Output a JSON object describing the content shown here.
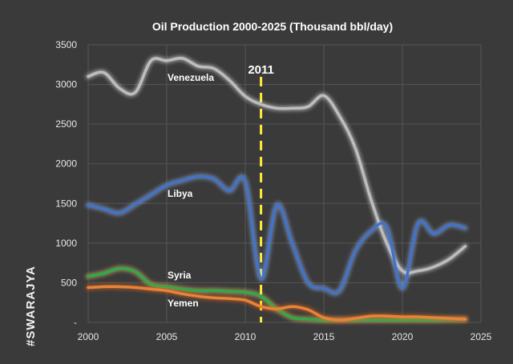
{
  "brand": {
    "text": "#SWARAJYA"
  },
  "chart_data": {
    "type": "line",
    "title": "Oil Production 2000-2025 (Thousand bbl/day)",
    "xlabel": "",
    "ylabel": "",
    "xlim": [
      2000,
      2025
    ],
    "ylim": [
      0,
      3500
    ],
    "x_ticks": [
      2000,
      2005,
      2010,
      2015,
      2020,
      2025
    ],
    "y_ticks": [
      0,
      500,
      1000,
      1500,
      2000,
      2500,
      3000,
      3500
    ],
    "y_tick_labels": [
      "-",
      "500",
      "1000",
      "1500",
      "2000",
      "2500",
      "3000",
      "3500"
    ],
    "grid": true,
    "legend": "inline labels",
    "marker": {
      "x": 2011,
      "label": "2011",
      "color": "#ffeb3b"
    },
    "series": [
      {
        "name": "Venezuela",
        "color": "#bdbdbd",
        "glow": "#f5f5f5",
        "x": [
          2000,
          2001,
          2002,
          2003,
          2004,
          2005,
          2006,
          2007,
          2008,
          2009,
          2010,
          2011,
          2012,
          2013,
          2014,
          2015,
          2016,
          2017,
          2018,
          2019,
          2020,
          2021,
          2022,
          2023,
          2024
        ],
        "values": [
          3100,
          3150,
          2950,
          2900,
          3300,
          3300,
          3330,
          3230,
          3200,
          3050,
          2850,
          2750,
          2700,
          2700,
          2720,
          2860,
          2600,
          2200,
          1550,
          1000,
          650,
          650,
          700,
          800,
          960
        ]
      },
      {
        "name": "Libya",
        "color": "#4472c4",
        "glow": "#9ec1ff",
        "x": [
          2000,
          2001,
          2002,
          2003,
          2004,
          2005,
          2006,
          2007,
          2008,
          2009,
          2010,
          2011,
          2012,
          2013,
          2014,
          2015,
          2016,
          2017,
          2018,
          2019,
          2020,
          2021,
          2022,
          2023,
          2024
        ],
        "values": [
          1480,
          1430,
          1380,
          1490,
          1610,
          1730,
          1790,
          1840,
          1810,
          1660,
          1780,
          550,
          1480,
          990,
          500,
          430,
          400,
          900,
          1150,
          1200,
          430,
          1250,
          1120,
          1230,
          1190
        ]
      },
      {
        "name": "Syria",
        "color": "#2eaa4a",
        "glow": "#ffd36a",
        "x": [
          2000,
          2001,
          2002,
          2003,
          2004,
          2005,
          2006,
          2007,
          2008,
          2009,
          2010,
          2011,
          2012,
          2013,
          2014,
          2015,
          2016,
          2017,
          2018,
          2019,
          2020,
          2021,
          2022,
          2023,
          2024
        ],
        "values": [
          580,
          620,
          680,
          640,
          480,
          450,
          420,
          400,
          400,
          390,
          380,
          330,
          170,
          60,
          40,
          30,
          30,
          30,
          30,
          30,
          30,
          30,
          30,
          35,
          40
        ]
      },
      {
        "name": "Yemen",
        "color": "#e8833a",
        "glow": "#ff6a1a",
        "x": [
          2000,
          2001,
          2002,
          2003,
          2004,
          2005,
          2006,
          2007,
          2008,
          2009,
          2010,
          2011,
          2012,
          2013,
          2014,
          2015,
          2016,
          2017,
          2018,
          2019,
          2020,
          2021,
          2022,
          2023,
          2024
        ],
        "values": [
          440,
          450,
          450,
          440,
          420,
          400,
          360,
          330,
          310,
          300,
          280,
          200,
          170,
          200,
          160,
          60,
          30,
          50,
          80,
          80,
          70,
          70,
          60,
          50,
          40
        ]
      }
    ]
  }
}
